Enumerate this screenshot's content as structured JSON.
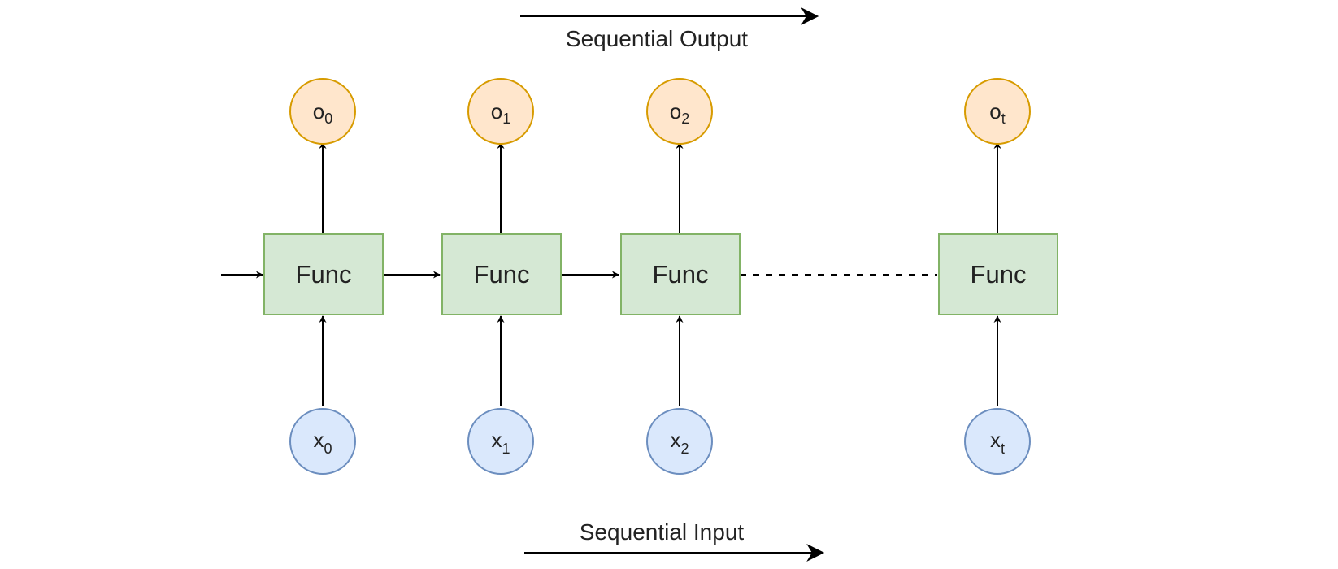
{
  "diagram": {
    "output_caption": "Sequential Output",
    "input_caption": "Sequential Input",
    "func_label": "Func",
    "colors": {
      "func_fill": "#d5e8d4",
      "func_stroke": "#82b366",
      "output_fill": "#ffe6cc",
      "output_stroke": "#d79b00",
      "input_fill": "#dae8fc",
      "input_stroke": "#6c8ebf",
      "line": "#000000"
    },
    "steps": [
      {
        "output": {
          "base": "o",
          "sub": "0"
        },
        "input": {
          "base": "x",
          "sub": "0"
        }
      },
      {
        "output": {
          "base": "o",
          "sub": "1"
        },
        "input": {
          "base": "x",
          "sub": "1"
        }
      },
      {
        "output": {
          "base": "o",
          "sub": "2"
        },
        "input": {
          "base": "x",
          "sub": "2"
        }
      },
      {
        "output": {
          "base": "o",
          "sub": "t"
        },
        "input": {
          "base": "x",
          "sub": "t"
        }
      }
    ]
  }
}
